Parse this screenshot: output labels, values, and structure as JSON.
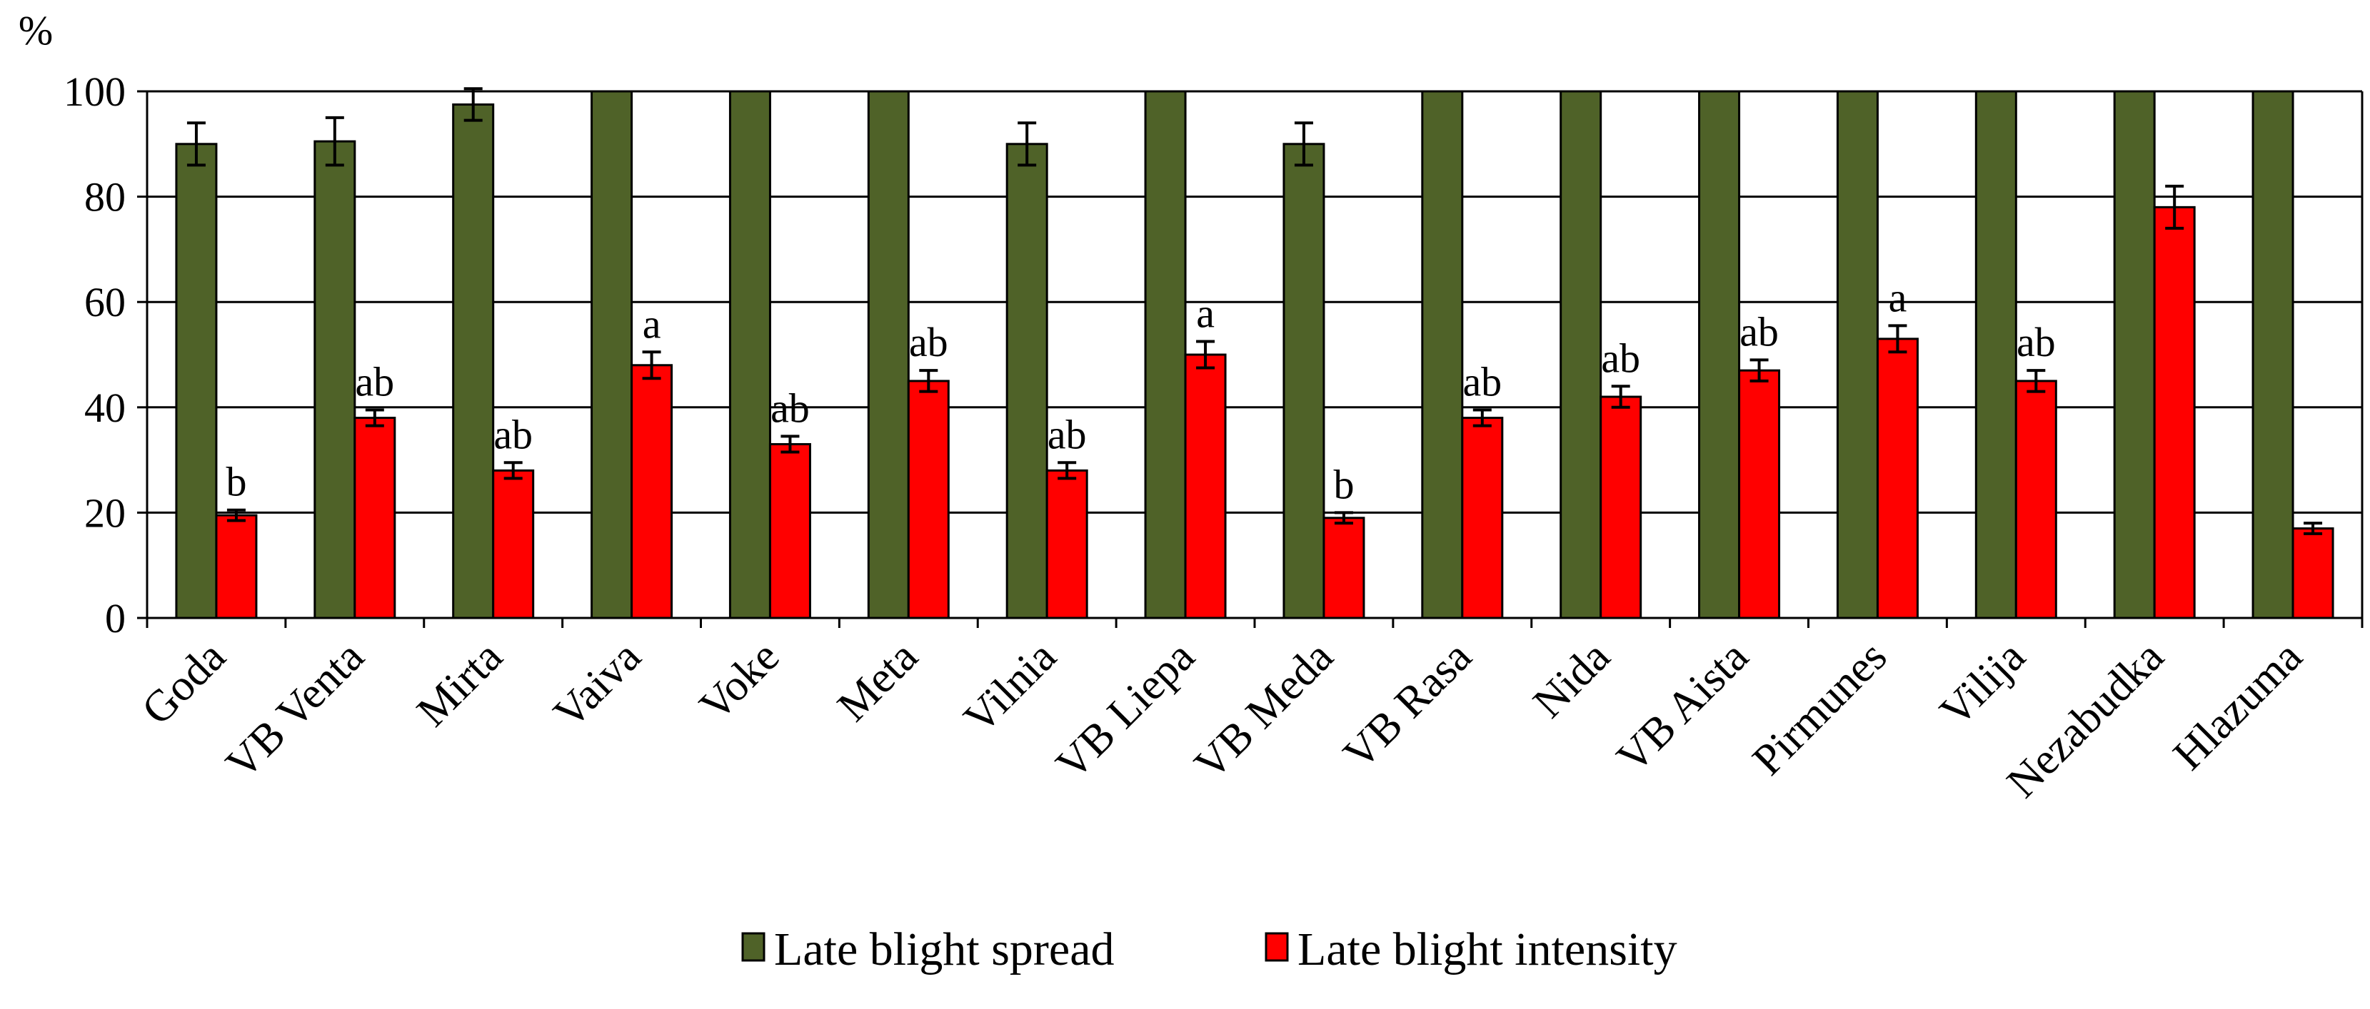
{
  "chart_data": {
    "type": "bar",
    "ylabel": "%",
    "ylim": [
      0,
      100
    ],
    "yticks": [
      0,
      20,
      40,
      60,
      80,
      100
    ],
    "grid": true,
    "legend_position": "bottom",
    "categories": [
      "Goda",
      "VB Venta",
      "Mirta",
      "Vaiva",
      "Voke",
      "Meta",
      "Vilnia",
      "VB Liepa",
      "VB Meda",
      "VB Rasa",
      "Nida",
      "VB Aista",
      "Pirmunes",
      "Vilija",
      "Nezabudka",
      "Hlazuma"
    ],
    "series": [
      {
        "name": "Late blight spread",
        "color": "#4f6228",
        "values": [
          90,
          90.5,
          97.5,
          100,
          100,
          100,
          90,
          100,
          90,
          100,
          100,
          100,
          100,
          100,
          100,
          100
        ],
        "errors": [
          4,
          4.5,
          3,
          0,
          0,
          0,
          4,
          0,
          4,
          0,
          0,
          0,
          0,
          0,
          0,
          0
        ]
      },
      {
        "name": "Late blight intensity",
        "color": "#ff0000",
        "values": [
          19.5,
          38,
          28,
          48,
          33,
          45,
          28,
          50,
          19,
          38,
          42,
          47,
          53,
          45,
          78,
          17
        ],
        "errors": [
          1,
          1.5,
          1.5,
          2.5,
          1.5,
          2,
          1.5,
          2.5,
          1,
          1.5,
          2,
          2,
          2.5,
          2,
          4,
          1
        ],
        "significance_labels": [
          "b",
          "ab",
          "ab",
          "a",
          "ab",
          "ab",
          "ab",
          "a",
          "b",
          "ab",
          "ab",
          "ab",
          "a",
          "ab",
          "",
          ""
        ]
      }
    ]
  }
}
